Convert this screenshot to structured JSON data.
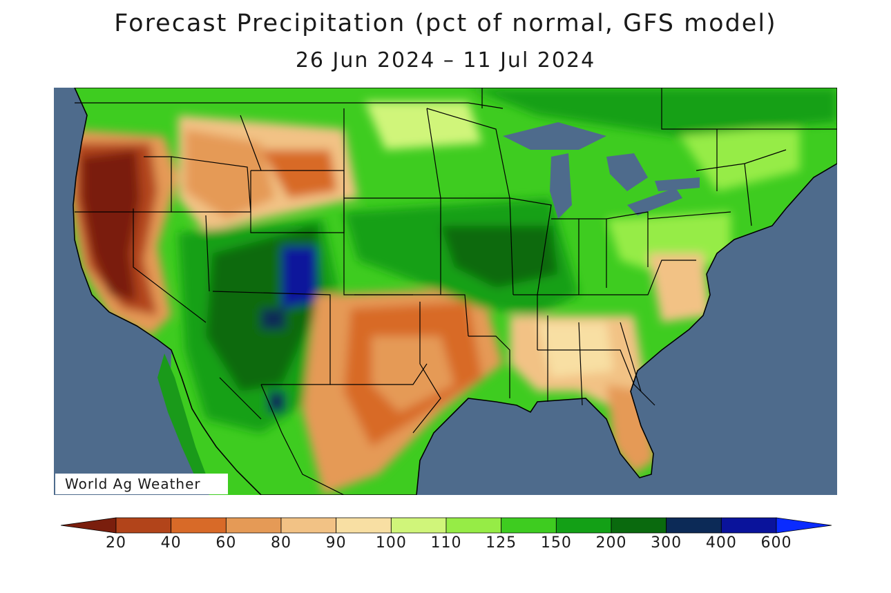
{
  "title": "Forecast Precipitation (pct of normal, GFS model)",
  "subtitle": "26 Jun 2024 – 11 Jul 2024",
  "credit": "World Ag Weather",
  "colors": {
    "ocean": "#4e6b8c",
    "border": "#000000",
    "water": "#4e6b8c"
  },
  "legend": {
    "bins": [
      {
        "color": "#7a1e0d"
      },
      {
        "color": "#b2441a"
      },
      {
        "color": "#d86a28"
      },
      {
        "color": "#e59a56"
      },
      {
        "color": "#f2c285"
      },
      {
        "color": "#f8dfa3"
      },
      {
        "color": "#d0f57a"
      },
      {
        "color": "#96ec46"
      },
      {
        "color": "#3ecc20"
      },
      {
        "color": "#13a016"
      },
      {
        "color": "#0a6a0e"
      },
      {
        "color": "#0c2a57"
      },
      {
        "color": "#0a139b"
      },
      {
        "color": "#0a2bff"
      }
    ],
    "ticks": [
      "20",
      "40",
      "60",
      "80",
      "90",
      "100",
      "110",
      "125",
      "150",
      "200",
      "300",
      "400",
      "600"
    ]
  }
}
